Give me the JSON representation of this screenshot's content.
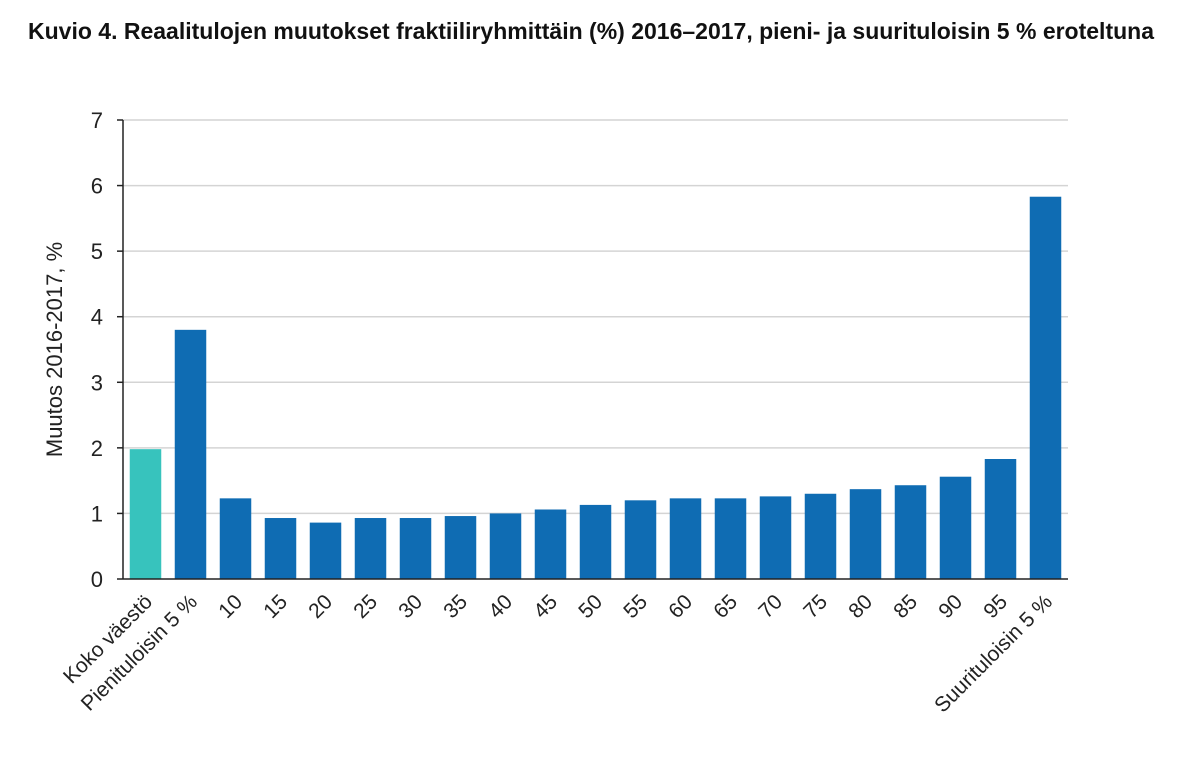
{
  "chart_data": {
    "type": "bar",
    "title": "Kuvio 4. Reaalitulojen muutokset fraktiiliryhmittäin (%) 2016–2017, pieni- ja suurituloisin 5 % eroteltuna",
    "xlabel": "",
    "ylabel": "Muutos 2016-2017, %",
    "ylim": [
      0,
      7
    ],
    "yticks": [
      "0",
      "1",
      "2",
      "3",
      "4",
      "5",
      "6",
      "7"
    ],
    "grid": true,
    "categories": [
      "Koko väestö",
      "Pienituloisin 5 %",
      "10",
      "15",
      "20",
      "25",
      "30",
      "35",
      "40",
      "45",
      "50",
      "55",
      "60",
      "65",
      "70",
      "75",
      "80",
      "85",
      "90",
      "95",
      "Suurituloisin 5 %"
    ],
    "values": [
      1.98,
      3.8,
      1.23,
      0.93,
      0.86,
      0.93,
      0.93,
      0.96,
      1.0,
      1.06,
      1.13,
      1.2,
      1.23,
      1.23,
      1.26,
      1.3,
      1.37,
      1.43,
      1.56,
      1.83,
      5.83
    ],
    "colors": {
      "highlight": "#37c3bd",
      "bar": "#0f6cb3",
      "grid": "#d4d4d4",
      "axis": "#222222"
    },
    "highlight_categories": [
      "Koko väestö"
    ]
  }
}
